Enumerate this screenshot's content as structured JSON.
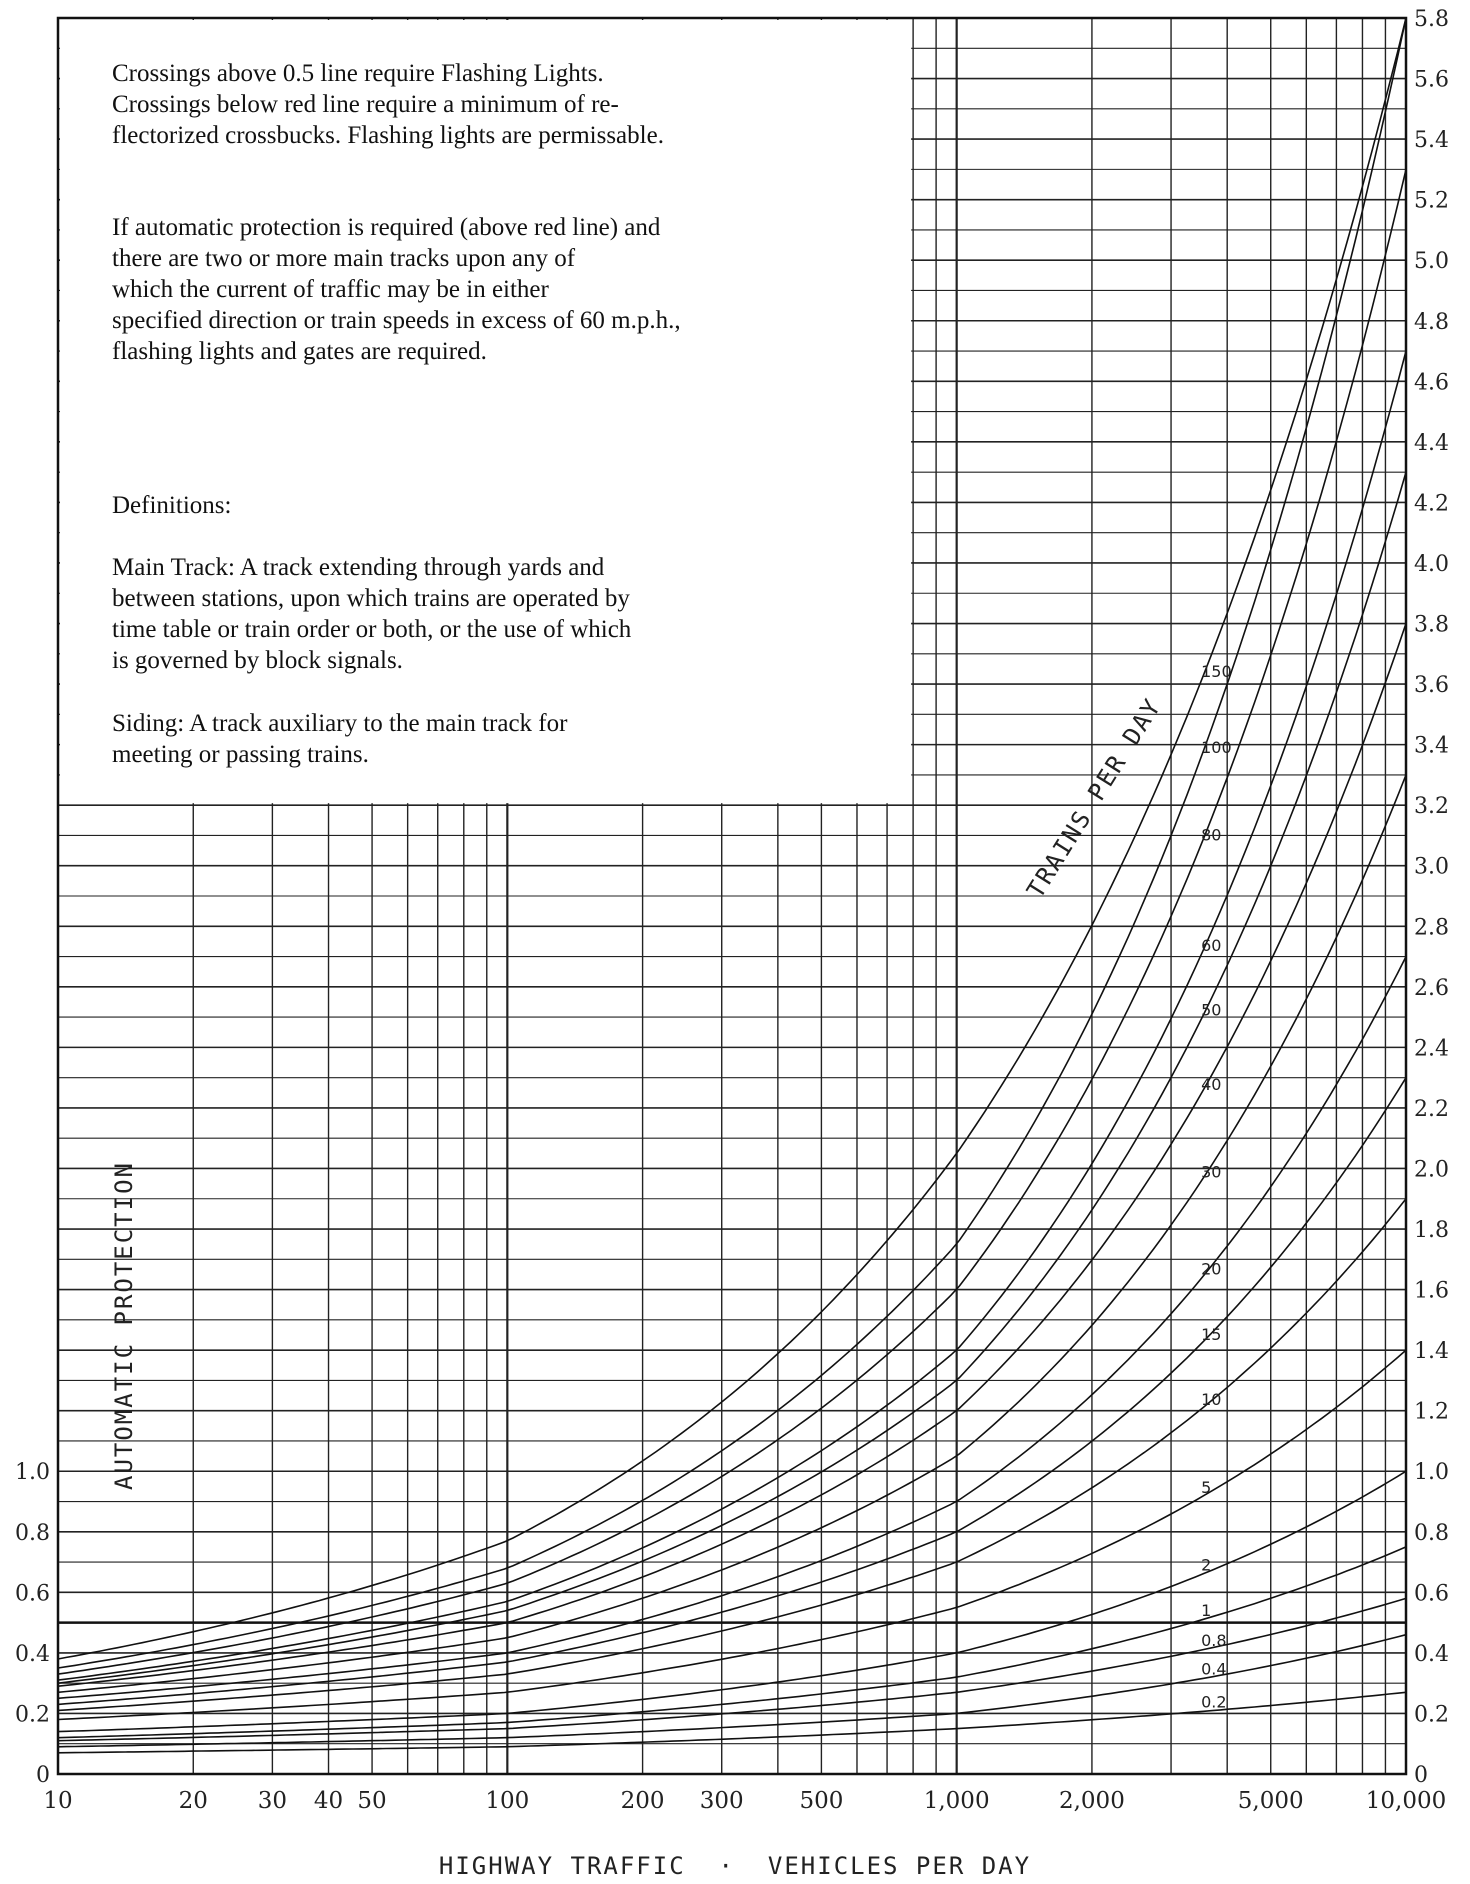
{
  "chart_data": {
    "type": "line",
    "xlabel": "HIGHWAY TRAFFIC  ·  VEHICLES PER DAY",
    "ylabel": "AUTOMATIC PROTECTION",
    "x_scale": "log",
    "xlim": [
      10,
      10000
    ],
    "ylim": [
      0,
      5.8
    ],
    "x_ticks": [
      {
        "v": 10,
        "label": "10"
      },
      {
        "v": 20,
        "label": "20"
      },
      {
        "v": 30,
        "label": "30"
      },
      {
        "v": 40,
        "label": "40"
      },
      {
        "v": 50,
        "label": "50"
      },
      {
        "v": 100,
        "label": "100"
      },
      {
        "v": 200,
        "label": "200"
      },
      {
        "v": 300,
        "label": "300"
      },
      {
        "v": 500,
        "label": "500"
      },
      {
        "v": 1000,
        "label": "1,000"
      },
      {
        "v": 2000,
        "label": "2,000"
      },
      {
        "v": 5000,
        "label": "5,000"
      },
      {
        "v": 10000,
        "label": "10,000"
      }
    ],
    "y_ticks_right": [
      "0",
      "0.2",
      "0.4",
      "0.6",
      "0.8",
      "1.0",
      "1.2",
      "1.4",
      "1.6",
      "1.8",
      "2.0",
      "2.2",
      "2.4",
      "2.6",
      "2.8",
      "3.0",
      "3.2",
      "3.4",
      "3.6",
      "3.8",
      "4.0",
      "4.2",
      "4.4",
      "4.6",
      "4.8",
      "5.0",
      "5.2",
      "5.4",
      "5.6",
      "5.8"
    ],
    "y_ticks_left": [
      "0",
      "0.2",
      "0.4",
      "0.6",
      "0.8",
      "1.0"
    ],
    "threshold_line": 0.5,
    "grid": true,
    "series_caption": "TRAINS PER DAY",
    "series": [
      {
        "name": "0.2",
        "x": [
          10,
          100,
          1000,
          10000
        ],
        "y": [
          0.07,
          0.09,
          0.15,
          0.27
        ]
      },
      {
        "name": "0.4",
        "x": [
          10,
          100,
          1000,
          10000
        ],
        "y": [
          0.09,
          0.12,
          0.2,
          0.46
        ]
      },
      {
        "name": "0.8",
        "x": [
          10,
          100,
          1000,
          10000
        ],
        "y": [
          0.11,
          0.15,
          0.27,
          0.58
        ]
      },
      {
        "name": "1",
        "x": [
          10,
          100,
          1000,
          10000
        ],
        "y": [
          0.12,
          0.17,
          0.32,
          0.75
        ]
      },
      {
        "name": "2",
        "x": [
          10,
          100,
          1000,
          10000
        ],
        "y": [
          0.14,
          0.2,
          0.4,
          1.0
        ]
      },
      {
        "name": "5",
        "x": [
          10,
          100,
          1000,
          10000
        ],
        "y": [
          0.18,
          0.27,
          0.55,
          1.4
        ]
      },
      {
        "name": "10",
        "x": [
          10,
          100,
          1000,
          10000
        ],
        "y": [
          0.21,
          0.33,
          0.7,
          1.9
        ]
      },
      {
        "name": "15",
        "x": [
          10,
          100,
          1000,
          10000
        ],
        "y": [
          0.23,
          0.37,
          0.8,
          2.3
        ]
      },
      {
        "name": "20",
        "x": [
          10,
          100,
          1000,
          10000
        ],
        "y": [
          0.25,
          0.4,
          0.9,
          2.7
        ]
      },
      {
        "name": "30",
        "x": [
          10,
          100,
          1000,
          10000
        ],
        "y": [
          0.27,
          0.45,
          1.05,
          3.3
        ]
      },
      {
        "name": "40",
        "x": [
          10,
          100,
          1000,
          10000
        ],
        "y": [
          0.29,
          0.5,
          1.2,
          3.8
        ]
      },
      {
        "name": "50",
        "x": [
          10,
          100,
          1000,
          10000
        ],
        "y": [
          0.3,
          0.54,
          1.3,
          4.3
        ]
      },
      {
        "name": "60",
        "x": [
          10,
          100,
          1000,
          10000
        ],
        "y": [
          0.31,
          0.57,
          1.4,
          4.7
        ]
      },
      {
        "name": "80",
        "x": [
          10,
          100,
          1000,
          10000
        ],
        "y": [
          0.33,
          0.63,
          1.6,
          5.3
        ]
      },
      {
        "name": "100",
        "x": [
          10,
          100,
          1000,
          10000
        ],
        "y": [
          0.35,
          0.68,
          1.75,
          5.8
        ]
      },
      {
        "name": "150",
        "x": [
          10,
          100,
          1000,
          10000
        ],
        "y": [
          0.38,
          0.77,
          2.05,
          5.8
        ]
      }
    ]
  },
  "notes": {
    "flashing": "Crossings above 0.5 line require Flashing Lights.\nCrossings below red line require a minimum of re-\nflectorized crossbucks. Flashing lights are permissable.",
    "gates": "If automatic protection is required (above red line) and\nthere are two or more main tracks upon any of\nwhich the current of traffic may be in either\nspecified direction or train speeds in excess of 60 m.p.h.,\nflashing lights and gates are required.",
    "definitions_heading": "Definitions:",
    "main_track": "Main Track:   A track extending through yards and\nbetween stations, upon which trains are operated by\ntime table or train order or both, or the use of which\nis governed by block signals.",
    "siding": "Siding:   A track auxiliary to the main track for\nmeeting or passing trains."
  }
}
